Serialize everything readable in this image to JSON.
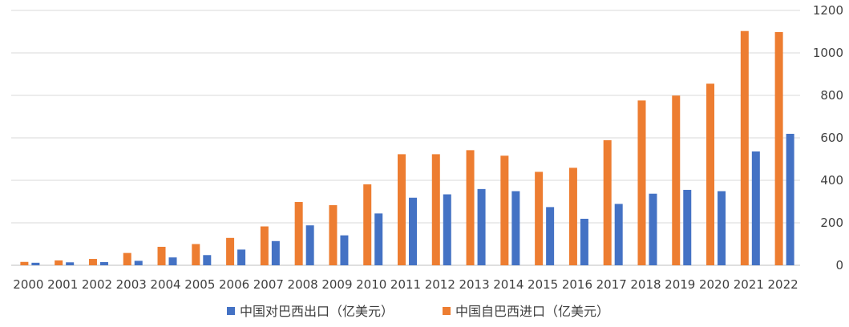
{
  "chart_data": {
    "type": "bar",
    "title": "",
    "xlabel": "",
    "ylabel": "",
    "categories": [
      "2000",
      "2001",
      "2002",
      "2003",
      "2004",
      "2005",
      "2006",
      "2007",
      "2008",
      "2009",
      "2010",
      "2011",
      "2012",
      "2013",
      "2014",
      "2015",
      "2016",
      "2017",
      "2018",
      "2019",
      "2020",
      "2021",
      "2022"
    ],
    "series": [
      {
        "name": "中国对巴西出口（亿美元）",
        "color": "#4472c4",
        "values": [
          12,
          14,
          15,
          21,
          37,
          48,
          74,
          114,
          188,
          141,
          244,
          318,
          334,
          359,
          349,
          274,
          219,
          289,
          337,
          355,
          349,
          536,
          619
        ]
      },
      {
        "name": "中国自巴西进口（亿美元）",
        "color": "#ed7d31",
        "values": [
          16,
          23,
          30,
          58,
          87,
          100,
          129,
          183,
          298,
          283,
          381,
          523,
          523,
          542,
          516,
          440,
          459,
          589,
          776,
          799,
          855,
          1103,
          1098
        ]
      }
    ],
    "ylim": [
      0,
      1200
    ],
    "yticks": [
      0,
      200,
      400,
      600,
      800,
      1000,
      1200
    ],
    "y_axis_side": "right",
    "grid": true,
    "legend_position": "bottom"
  }
}
